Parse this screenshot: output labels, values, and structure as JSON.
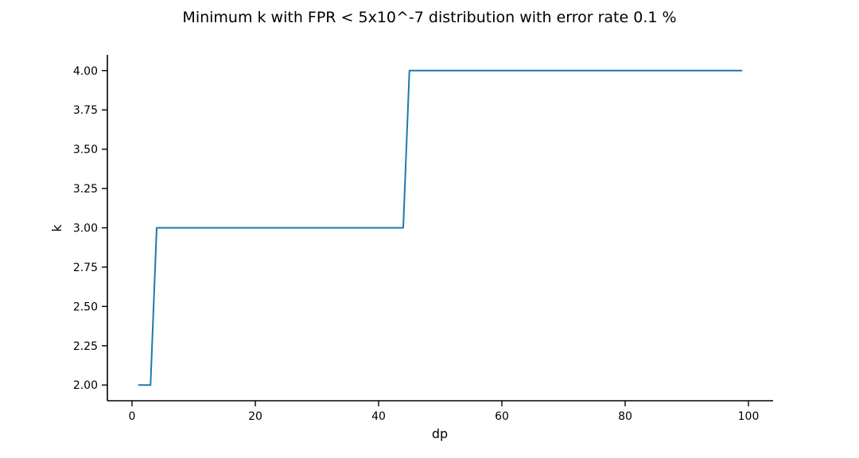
{
  "chart_data": {
    "type": "line",
    "title": "Minimum k with FPR < 5x10^-7 distribution with error rate 0.1 %",
    "xlabel": "dp",
    "ylabel": "k",
    "xlim": [
      -4,
      104
    ],
    "ylim": [
      1.9,
      4.1
    ],
    "xticks": [
      0,
      20,
      40,
      60,
      80,
      100
    ],
    "xtick_labels": [
      "0",
      "20",
      "40",
      "60",
      "80",
      "100"
    ],
    "yticks": [
      2.0,
      2.25,
      2.5,
      2.75,
      3.0,
      3.25,
      3.5,
      3.75,
      4.0
    ],
    "ytick_labels": [
      "2.00",
      "2.25",
      "2.50",
      "2.75",
      "3.00",
      "3.25",
      "3.50",
      "3.75",
      "4.00"
    ],
    "grid": false,
    "series": [
      {
        "color": "#1f77b4",
        "x": [
          1,
          2,
          3,
          4,
          44,
          45,
          99
        ],
        "y": [
          2,
          2,
          2,
          3,
          3,
          4,
          4
        ]
      }
    ]
  }
}
